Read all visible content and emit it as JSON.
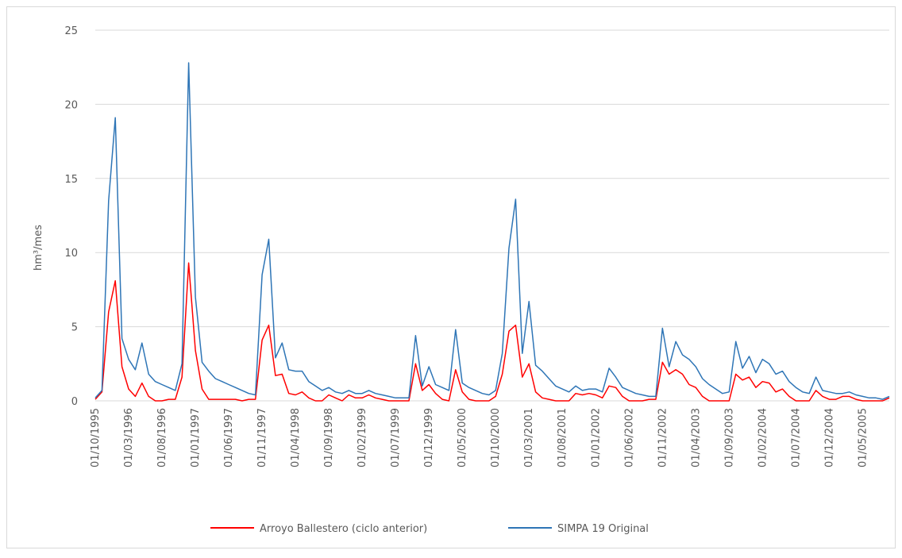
{
  "chart_data": {
    "type": "line",
    "y_label": "hm³/mes",
    "categories": [
      "01/10/1995",
      null,
      null,
      null,
      null,
      "01/03/1996",
      null,
      null,
      null,
      null,
      "01/08/1996",
      null,
      null,
      null,
      null,
      "01/01/1997",
      null,
      null,
      null,
      null,
      "01/06/1997",
      null,
      null,
      null,
      null,
      "01/11/1997",
      null,
      null,
      null,
      null,
      "01/04/1998",
      null,
      null,
      null,
      null,
      "01/09/1998",
      null,
      null,
      null,
      null,
      "01/02/1999",
      null,
      null,
      null,
      null,
      "01/07/1999",
      null,
      null,
      null,
      null,
      "01/12/1999",
      null,
      null,
      null,
      null,
      "01/05/2000",
      null,
      null,
      null,
      null,
      "01/10/2000",
      null,
      null,
      null,
      null,
      "01/03/2001",
      null,
      null,
      null,
      null,
      "01/08/2001",
      null,
      null,
      null,
      null,
      "01/01/2002",
      null,
      null,
      null,
      null,
      "01/06/2002",
      null,
      null,
      null,
      null,
      "01/11/2002",
      null,
      null,
      null,
      null,
      "01/04/2003",
      null,
      null,
      null,
      null,
      "01/09/2003",
      null,
      null,
      null,
      null,
      "01/02/2004",
      null,
      null,
      null,
      null,
      "01/07/2004",
      null,
      null,
      null,
      null,
      "01/12/2004",
      null,
      null,
      null,
      null,
      "01/05/2005",
      null,
      null,
      null,
      null
    ],
    "series": [
      {
        "name": "Arroyo Ballestero (ciclo anterior)",
        "color": "#ff0000",
        "values": [
          0.1,
          0.6,
          6.0,
          8.1,
          2.3,
          0.8,
          0.3,
          1.2,
          0.3,
          0.0,
          0.0,
          0.1,
          0.1,
          1.6,
          9.3,
          3.4,
          0.8,
          0.1,
          0.1,
          0.1,
          0.1,
          0.1,
          0.0,
          0.1,
          0.1,
          4.1,
          5.1,
          1.7,
          1.8,
          0.5,
          0.4,
          0.6,
          0.2,
          0.0,
          0.0,
          0.4,
          0.2,
          0.0,
          0.4,
          0.2,
          0.2,
          0.4,
          0.2,
          0.1,
          0.0,
          0.0,
          0.0,
          0.0,
          2.5,
          0.7,
          1.1,
          0.5,
          0.1,
          0.0,
          2.1,
          0.6,
          0.1,
          0.0,
          0.0,
          0.0,
          0.3,
          1.8,
          4.7,
          5.1,
          1.6,
          2.5,
          0.6,
          0.2,
          0.1,
          0.0,
          0.0,
          0.0,
          0.5,
          0.4,
          0.5,
          0.4,
          0.2,
          1.0,
          0.9,
          0.3,
          0.0,
          0.0,
          0.0,
          0.1,
          0.1,
          2.6,
          1.8,
          2.1,
          1.8,
          1.1,
          0.9,
          0.3,
          0.0,
          0.0,
          0.0,
          0.0,
          1.8,
          1.4,
          1.6,
          0.9,
          1.3,
          1.2,
          0.6,
          0.8,
          0.3,
          0.0,
          0.0,
          0.0,
          0.7,
          0.3,
          0.1,
          0.1,
          0.3,
          0.3,
          0.1,
          0.0,
          0.0,
          0.0,
          0.0,
          0.2
        ]
      },
      {
        "name": "SIMPA 19 Original",
        "color": "#2e75b6",
        "values": [
          0.2,
          0.7,
          13.5,
          19.1,
          4.2,
          2.8,
          2.1,
          3.9,
          1.8,
          1.3,
          1.1,
          0.9,
          0.7,
          2.5,
          22.8,
          7.0,
          2.6,
          2.0,
          1.5,
          1.3,
          1.1,
          0.9,
          0.7,
          0.5,
          0.4,
          8.5,
          10.9,
          2.9,
          3.9,
          2.1,
          2.0,
          2.0,
          1.3,
          1.0,
          0.7,
          0.9,
          0.6,
          0.5,
          0.7,
          0.5,
          0.5,
          0.7,
          0.5,
          0.4,
          0.3,
          0.2,
          0.2,
          0.2,
          4.4,
          1.0,
          2.3,
          1.1,
          0.9,
          0.7,
          4.8,
          1.2,
          0.9,
          0.7,
          0.5,
          0.4,
          0.7,
          3.2,
          10.3,
          13.6,
          3.2,
          6.7,
          2.4,
          2.0,
          1.5,
          1.0,
          0.8,
          0.6,
          1.0,
          0.7,
          0.8,
          0.8,
          0.6,
          2.2,
          1.6,
          0.9,
          0.7,
          0.5,
          0.4,
          0.3,
          0.3,
          4.9,
          2.3,
          4.0,
          3.1,
          2.8,
          2.3,
          1.5,
          1.1,
          0.8,
          0.5,
          0.6,
          4.0,
          2.2,
          3.0,
          1.9,
          2.8,
          2.5,
          1.8,
          2.0,
          1.3,
          0.9,
          0.6,
          0.5,
          1.6,
          0.7,
          0.6,
          0.5,
          0.5,
          0.6,
          0.4,
          0.3,
          0.2,
          0.2,
          0.1,
          0.3
        ]
      }
    ],
    "ylim": [
      0,
      25
    ],
    "yticks": [
      0,
      5,
      10,
      15,
      20,
      25
    ],
    "grid": true,
    "legend": "bottom"
  }
}
